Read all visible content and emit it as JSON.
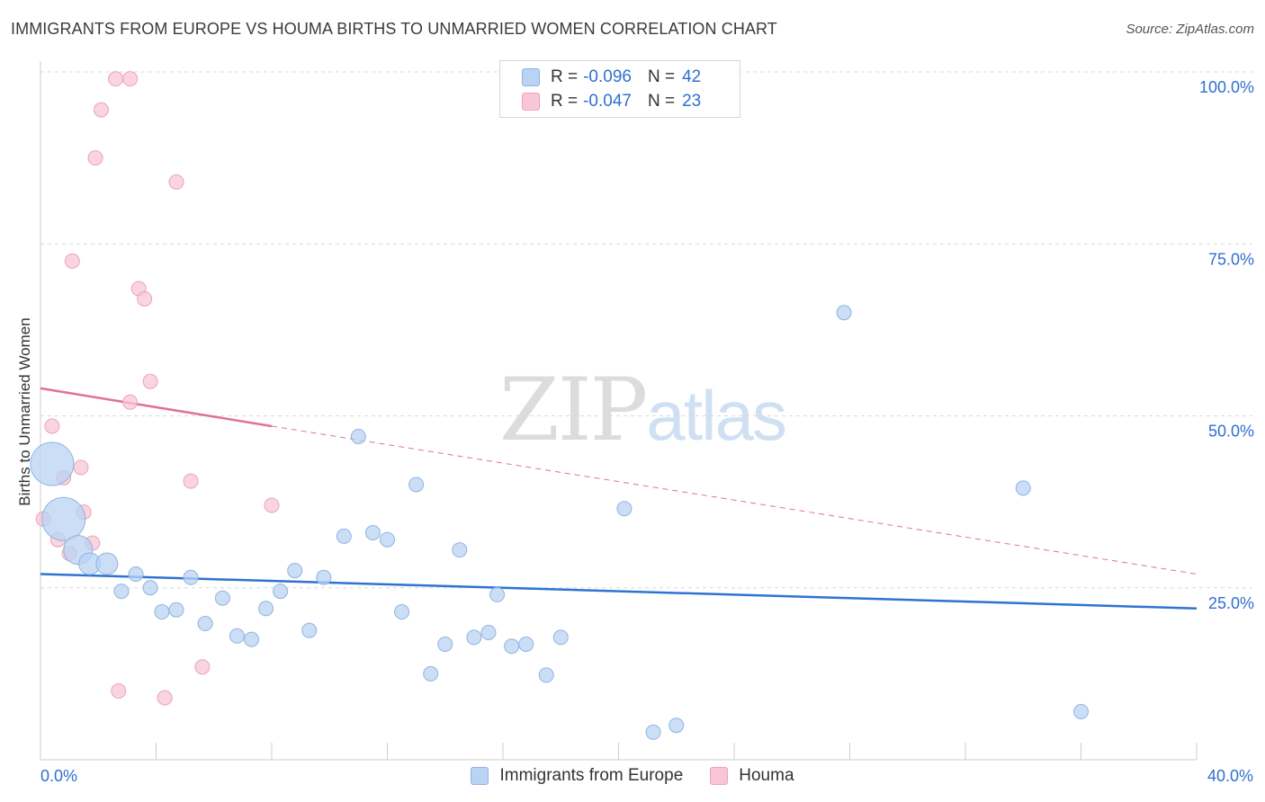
{
  "title": "IMMIGRANTS FROM EUROPE VS HOUMA BIRTHS TO UNMARRIED WOMEN CORRELATION CHART",
  "source": "Source: ZipAtlas.com",
  "watermark": {
    "zip": "ZIP",
    "atlas": "atlas"
  },
  "legend_top": [
    {
      "r_label": "R =",
      "r_value": "-0.096",
      "n_label": "N =",
      "n_value": "42"
    },
    {
      "r_label": "R =",
      "r_value": "-0.047",
      "n_label": "N =",
      "n_value": "23"
    }
  ],
  "colors": {
    "blue_fill": "#b9d3f3",
    "blue_stroke": "#8fb4e3",
    "blue_line": "#2f73d0",
    "pink_fill": "#f8c6d4",
    "pink_stroke": "#eba3b8",
    "pink_line": "#e0709a",
    "grid": "#d9d9d9",
    "tick_label": "#2f6fcf"
  },
  "chart_data": {
    "type": "scatter",
    "title": "IMMIGRANTS FROM EUROPE VS HOUMA BIRTHS TO UNMARRIED WOMEN CORRELATION CHART",
    "xlabel": "",
    "ylabel": "Births to Unmarried Women",
    "xlim": [
      0,
      40
    ],
    "ylim": [
      0,
      100
    ],
    "x_tick_labels": [
      "0.0%",
      "40.0%"
    ],
    "y_tick_labels": [
      "25.0%",
      "50.0%",
      "75.0%",
      "100.0%"
    ],
    "y_ticks": [
      25,
      50,
      75,
      100
    ],
    "grid": true,
    "legend_position": "bottom",
    "series": [
      {
        "name": "Immigrants from Europe",
        "color": "#b9d3f3",
        "points": [
          [
            0.4,
            43.0,
            3
          ],
          [
            0.8,
            35.0,
            3
          ],
          [
            1.3,
            30.5,
            2
          ],
          [
            1.7,
            28.5,
            1.5
          ],
          [
            2.3,
            28.5,
            1.5
          ],
          [
            2.8,
            24.5,
            1
          ],
          [
            3.3,
            27.0,
            1
          ],
          [
            3.8,
            25.0,
            1
          ],
          [
            4.2,
            21.5,
            1
          ],
          [
            4.7,
            21.8,
            1
          ],
          [
            5.2,
            26.5,
            1
          ],
          [
            5.7,
            19.8,
            1
          ],
          [
            6.3,
            23.5,
            1
          ],
          [
            6.8,
            18.0,
            1
          ],
          [
            7.3,
            17.5,
            1
          ],
          [
            7.8,
            22.0,
            1
          ],
          [
            8.3,
            24.5,
            1
          ],
          [
            8.8,
            27.5,
            1
          ],
          [
            9.3,
            18.8,
            1
          ],
          [
            9.8,
            26.5,
            1
          ],
          [
            10.5,
            32.5,
            1
          ],
          [
            11.0,
            47.0,
            1
          ],
          [
            11.5,
            33.0,
            1
          ],
          [
            12.0,
            32.0,
            1
          ],
          [
            12.5,
            21.5,
            1
          ],
          [
            13.0,
            40.0,
            1
          ],
          [
            13.5,
            12.5,
            1
          ],
          [
            14.0,
            16.8,
            1
          ],
          [
            14.5,
            30.5,
            1
          ],
          [
            15.0,
            17.8,
            1
          ],
          [
            15.5,
            18.5,
            1
          ],
          [
            15.8,
            24.0,
            1
          ],
          [
            16.3,
            16.5,
            1
          ],
          [
            16.8,
            16.8,
            1
          ],
          [
            17.5,
            12.3,
            1
          ],
          [
            18.0,
            17.8,
            1
          ],
          [
            20.2,
            36.5,
            1
          ],
          [
            21.2,
            4.0,
            1
          ],
          [
            22.0,
            5.0,
            1
          ],
          [
            27.8,
            65.0,
            1
          ],
          [
            34.0,
            39.5,
            1
          ],
          [
            36.0,
            7.0,
            1
          ]
        ]
      },
      {
        "name": "Houma",
        "color": "#f8c6d4",
        "points": [
          [
            0.1,
            35.0
          ],
          [
            0.4,
            48.5
          ],
          [
            0.6,
            32.0
          ],
          [
            0.8,
            41.0
          ],
          [
            1.0,
            30.0
          ],
          [
            1.4,
            42.5
          ],
          [
            1.5,
            36.0
          ],
          [
            1.8,
            31.5
          ],
          [
            1.9,
            87.5
          ],
          [
            2.1,
            94.5
          ],
          [
            1.1,
            72.5
          ],
          [
            2.7,
            10.0
          ],
          [
            2.6,
            99.0
          ],
          [
            3.1,
            99.0
          ],
          [
            3.1,
            52.0
          ],
          [
            3.4,
            68.5
          ],
          [
            3.6,
            67.0
          ],
          [
            3.8,
            55.0
          ],
          [
            4.3,
            9.0
          ],
          [
            4.7,
            84.0
          ],
          [
            5.2,
            40.5
          ],
          [
            5.6,
            13.5
          ],
          [
            8.0,
            37.0
          ]
        ]
      }
    ],
    "trendlines": [
      {
        "series": "Immigrants from Europe",
        "from": [
          0,
          27.0
        ],
        "to": [
          40,
          22.0
        ],
        "style": "solid"
      },
      {
        "series": "Houma",
        "solid_from": [
          0,
          54.0
        ],
        "solid_to": [
          8.0,
          48.5
        ],
        "dashed_to": [
          40,
          27.0
        ]
      }
    ]
  },
  "legend_bottom": [
    {
      "label": "Immigrants from Europe"
    },
    {
      "label": "Houma"
    }
  ]
}
